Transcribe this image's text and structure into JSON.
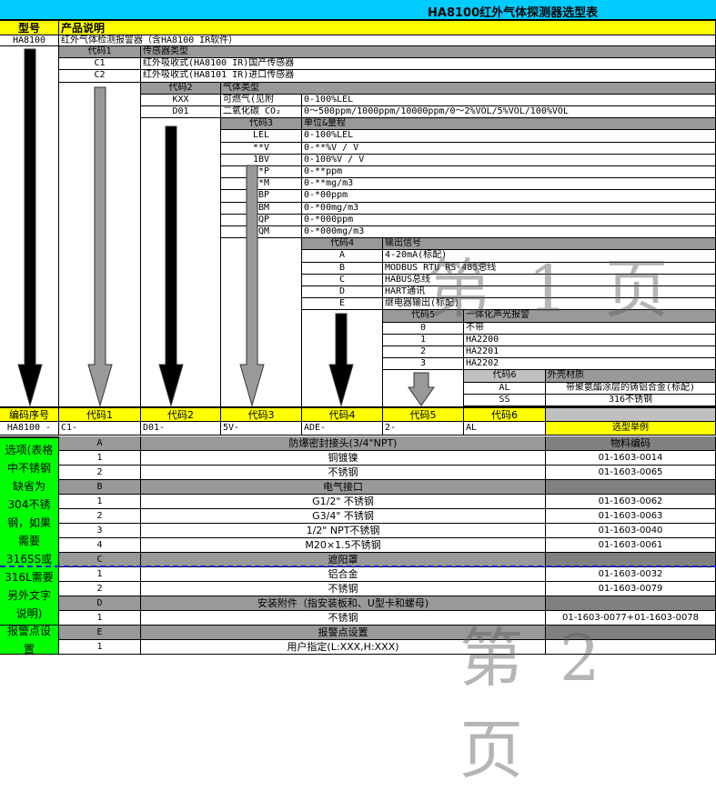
{
  "title": "HA8100红外气体探测器选型表",
  "header": {
    "model_label": "型号",
    "desc_label": "产品说明"
  },
  "model": {
    "code": "HA8100",
    "desc": "红外气体检测报警器（含HA8100 IR软件）"
  },
  "levels": [
    {
      "header_code": "代码1",
      "header_desc": "传感器类型",
      "items": [
        {
          "code": "C1",
          "desc": "红外吸收式(HA8100 IR)国产传感器"
        },
        {
          "code": "C2",
          "desc": "红外吸收式(HA8101 IR)进口传感器"
        }
      ]
    },
    {
      "header_code": "代码2",
      "header_desc": "气体类型",
      "items": [
        {
          "code": "KXX",
          "desc": "可燃气(见附",
          "range": "0-100%LEL"
        },
        {
          "code": "D01",
          "desc": "二氧化碳 CO₂",
          "range": "0～500ppm/1000ppm/10000ppm/0～2%VOL/5%VOL/100%VOL"
        }
      ]
    },
    {
      "header_code": "代码3",
      "header_desc": "单位&量程",
      "items": [
        {
          "code": "LEL",
          "desc": "0-100%LEL"
        },
        {
          "code": "**V",
          "desc": "0-**%V / V"
        },
        {
          "code": "1BV",
          "desc": "0-100%V / V"
        },
        {
          "code": "**P",
          "desc": "0-**ppm"
        },
        {
          "code": "**M",
          "desc": "0-**mg/m3"
        },
        {
          "code": "*BP",
          "desc": "0-*00ppm"
        },
        {
          "code": "*BM",
          "desc": "0-*00mg/m3"
        },
        {
          "code": "*QP",
          "desc": "0-*000ppm"
        },
        {
          "code": "*QM",
          "desc": "0-*000mg/m3"
        }
      ]
    },
    {
      "header_code": "代码4",
      "header_desc": "输出信号",
      "items": [
        {
          "code": "A",
          "desc": "4-20mA(标配)"
        },
        {
          "code": "B",
          "desc": "MODBUS RTU RS-485总线"
        },
        {
          "code": "C",
          "desc": "HABUS总线"
        },
        {
          "code": "D",
          "desc": "HART通讯"
        },
        {
          "code": "E",
          "desc": "继电器输出(标配)"
        }
      ]
    },
    {
      "header_code": "代码5",
      "header_desc": "一体化声光报警",
      "items": [
        {
          "code": "0",
          "desc": "不带"
        },
        {
          "code": "1",
          "desc": "HA2200"
        },
        {
          "code": "2",
          "desc": "HA2201"
        },
        {
          "code": "3",
          "desc": "HA2202"
        }
      ]
    },
    {
      "header_code": "代码6",
      "header_desc": "外壳材质",
      "items": [
        {
          "code": "AL",
          "desc": "带聚氨酯涂层的铸铝合金(标配)"
        },
        {
          "code": "SS",
          "desc": "316不锈钢"
        }
      ]
    }
  ],
  "summary": {
    "labels": [
      "编码序号",
      "代码1",
      "代码2",
      "代码3",
      "代码4",
      "代码5",
      "代码6"
    ],
    "values": [
      "HA8100 -",
      "C1-",
      "D01-",
      "5V-",
      "ADE-",
      "2-",
      "AL"
    ],
    "example_label": "选型举例"
  },
  "options": {
    "side_label": "选项(表格中不锈钢缺省为304不锈钢，如果需要316SS或316L需要另外文字说明)",
    "alarm_side_label": "报警点设置",
    "material_header": "物料编码",
    "groups": [
      {
        "code": "A",
        "title": "防爆密封接头(3/4\"NPT)",
        "items": [
          {
            "code": "1",
            "desc": "铜镀镍",
            "material": "01-1603-0014"
          },
          {
            "code": "2",
            "desc": "不锈钢",
            "material": "01-1603-0065"
          }
        ]
      },
      {
        "code": "B",
        "title": "电气接口",
        "items": [
          {
            "code": "1",
            "desc": "G1/2\" 不锈钢",
            "material": "01-1603-0062"
          },
          {
            "code": "2",
            "desc": "G3/4\" 不锈钢",
            "material": "01-1603-0063"
          },
          {
            "code": "3",
            "desc": "1/2\" NPT不锈钢",
            "material": "01-1603-0040"
          },
          {
            "code": "4",
            "desc": "M20×1.5不锈钢",
            "material": "01-1603-0061"
          }
        ]
      },
      {
        "code": "C",
        "title": "遮阳罩",
        "items": [
          {
            "code": "1",
            "desc": "铝合金",
            "material": "01-1603-0032"
          },
          {
            "code": "2",
            "desc": "不锈钢",
            "material": "01-1603-0079"
          }
        ]
      },
      {
        "code": "D",
        "title": "安装附件（指安装板和、U型卡和螺母)",
        "items": [
          {
            "code": "1",
            "desc": "不锈钢",
            "material": "01-1603-0077+01-1603-0078"
          }
        ]
      },
      {
        "code": "E",
        "title": "报警点设置",
        "items": [
          {
            "code": "1",
            "desc": "用户指定(L:XXX,H:XXX)",
            "material": ""
          }
        ]
      }
    ]
  },
  "watermarks": [
    "第1页",
    "第2页"
  ],
  "colors": {
    "title_bar": "#00ccff",
    "header": "#ffff00",
    "options_side": "#00ff00",
    "section": "#999999",
    "dashed_line": "#1a1acc"
  }
}
